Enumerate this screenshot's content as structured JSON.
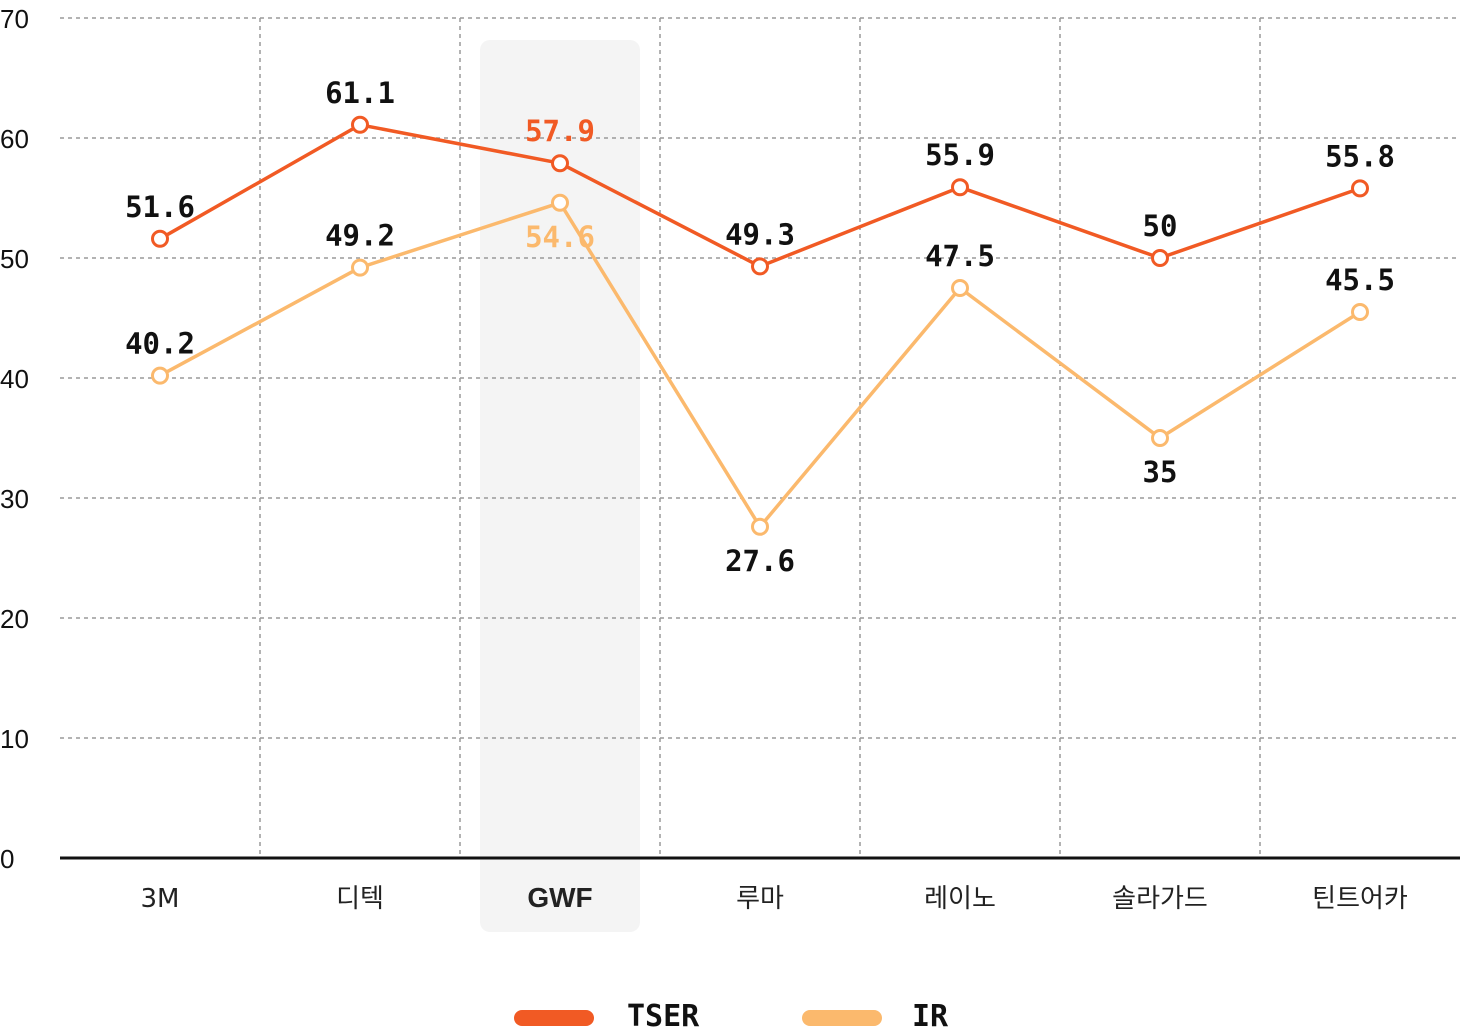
{
  "chart_data": {
    "type": "line",
    "categories": [
      "3M",
      "디텍",
      "GWF",
      "루마",
      "레이노",
      "솔라가드",
      "틴트어카"
    ],
    "highlight_category": "GWF",
    "series": [
      {
        "name": "TSER",
        "color": "#f15a24",
        "values": [
          51.6,
          61.1,
          57.9,
          49.3,
          55.9,
          50,
          55.8
        ]
      },
      {
        "name": "IR",
        "color": "#fbb96d",
        "values": [
          40.2,
          49.2,
          54.6,
          27.6,
          47.5,
          35,
          45.5
        ]
      }
    ],
    "ylim": [
      0,
      70
    ],
    "yticks": [
      0,
      10,
      20,
      30,
      40,
      50,
      60,
      70
    ],
    "grid": true,
    "legend": "bottom-center",
    "colors": {
      "highlight_text": "#e8300f",
      "highlight_band": "#f4f4f4"
    }
  }
}
